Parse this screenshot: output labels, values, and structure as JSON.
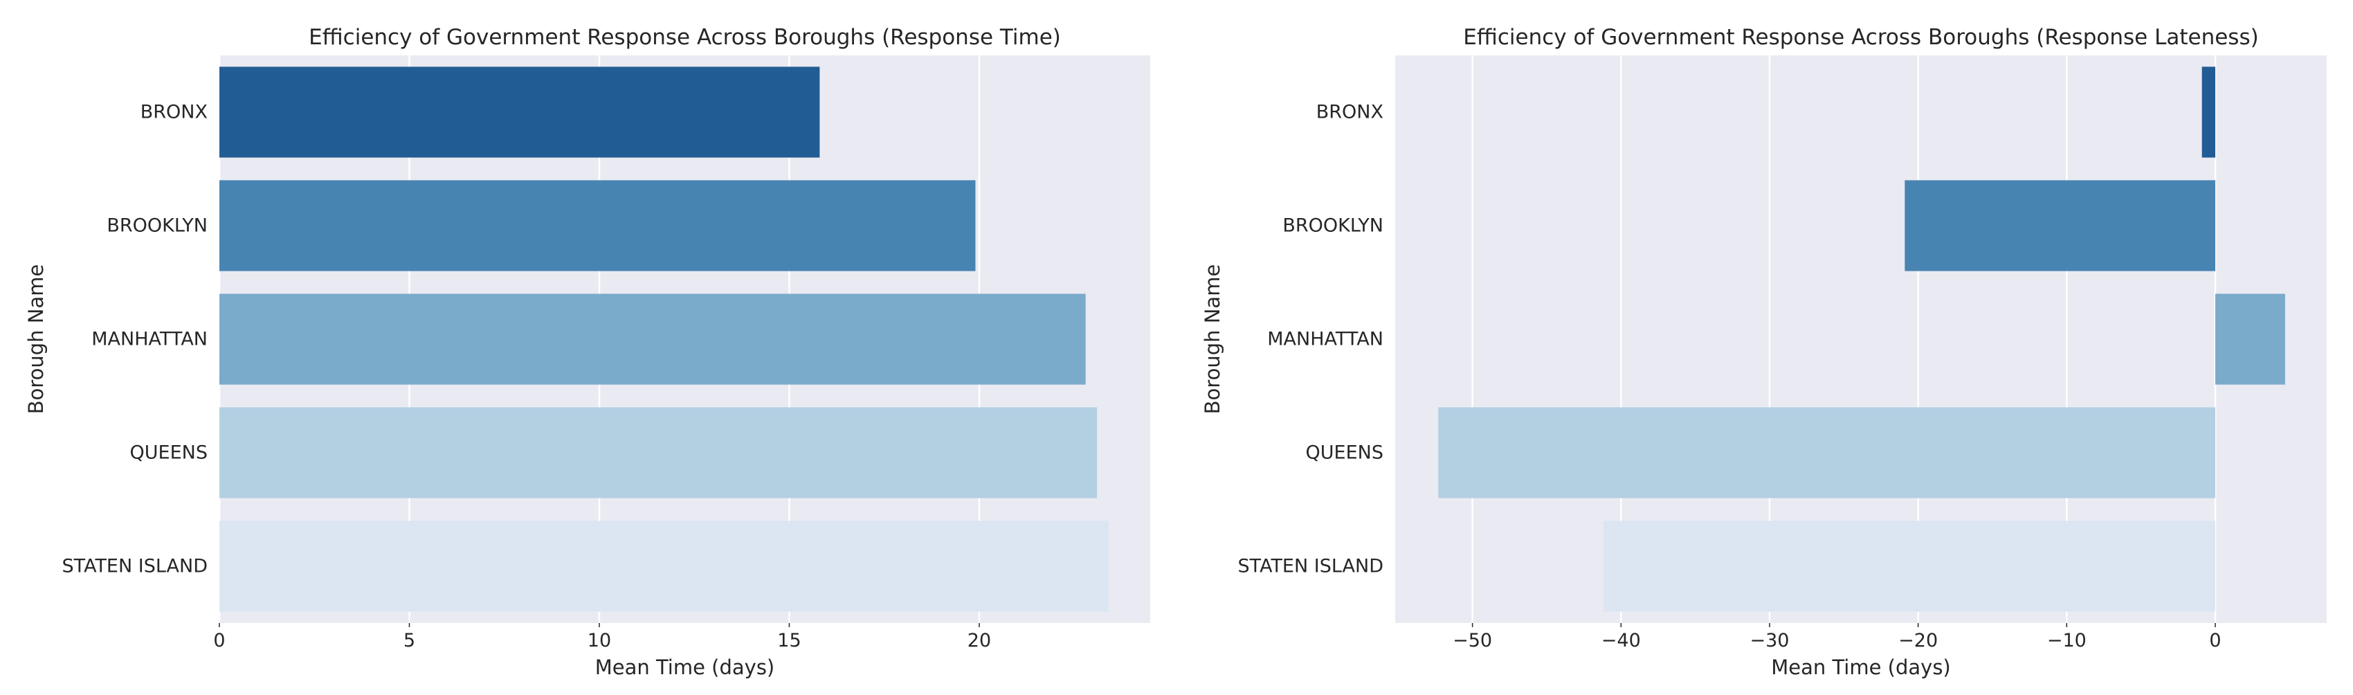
{
  "chart_data": [
    {
      "type": "bar",
      "orientation": "horizontal",
      "title": "Efficiency of Government Response Across Boroughs (Response Time)",
      "xlabel": "Mean Time (days)",
      "ylabel": "Borough Name",
      "categories": [
        "BRONX",
        "BROOKLYN",
        "MANHATTAN",
        "QUEENS",
        "STATEN ISLAND"
      ],
      "values": [
        15.8,
        19.9,
        22.8,
        23.1,
        23.4
      ],
      "colors": [
        "#225c94",
        "#4884b2",
        "#7aabcb",
        "#b3cfe2",
        "#dbe6f2"
      ],
      "xlim": [
        0,
        24.5
      ],
      "xticks": [
        0,
        5,
        10,
        15,
        20
      ],
      "xtick_labels": [
        "0",
        "5",
        "10",
        "15",
        "20"
      ],
      "grid": true,
      "background": "#eaeaf2"
    },
    {
      "type": "bar",
      "orientation": "horizontal",
      "title": "Efficiency of Government Response Across Boroughs (Response Lateness)",
      "xlabel": "Mean Time (days)",
      "ylabel": "Borough Name",
      "categories": [
        "BRONX",
        "BROOKLYN",
        "MANHATTAN",
        "QUEENS",
        "STATEN ISLAND"
      ],
      "values": [
        -0.9,
        -20.9,
        4.7,
        -52.3,
        -41.2
      ],
      "colors": [
        "#225c94",
        "#4884b2",
        "#7aabcb",
        "#b3cfe2",
        "#dbe6f2"
      ],
      "xlim": [
        -55.2,
        7.5
      ],
      "xticks": [
        -50,
        -40,
        -30,
        -20,
        -10,
        0
      ],
      "xtick_labels": [
        "−50",
        "−40",
        "−30",
        "−20",
        "−10",
        "0"
      ],
      "grid": true,
      "background": "#eaeaf2"
    }
  ]
}
